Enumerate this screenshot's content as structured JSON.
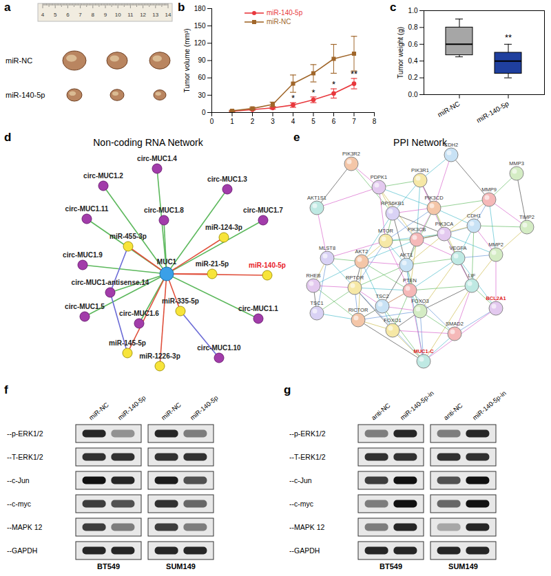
{
  "chart_data": [
    {
      "type": "line",
      "x": [
        1,
        2,
        3,
        4,
        5,
        6,
        7
      ],
      "xlim": [
        0,
        8
      ],
      "xticks": [
        0,
        1,
        2,
        3,
        4,
        5,
        6,
        7,
        8
      ],
      "ylim": [
        0,
        180
      ],
      "yticks": [
        0,
        30,
        60,
        90,
        120,
        150,
        180
      ],
      "ylabel": "Tumor volume (mm³)",
      "legend": "top",
      "series": [
        {
          "name": "miR-140-5p",
          "color": "#e8383d",
          "marker": "circle",
          "values": [
            2,
            5,
            8,
            13,
            22,
            33,
            50
          ],
          "errors": [
            1,
            1,
            2,
            4,
            5,
            8,
            9
          ]
        },
        {
          "name": "miR-NC",
          "color": "#a0662a",
          "marker": "square",
          "values": [
            3,
            7,
            14,
            50,
            68,
            93,
            102
          ],
          "errors": [
            1,
            2,
            4,
            15,
            15,
            25,
            30
          ]
        }
      ],
      "annotations": [
        {
          "x": 4,
          "label": "*"
        },
        {
          "x": 5,
          "label": "*"
        },
        {
          "x": 6,
          "label": "*"
        },
        {
          "x": 7,
          "label": "**"
        }
      ]
    },
    {
      "type": "box",
      "categories": [
        "miR-NC",
        "miR-140-5p"
      ],
      "colors": [
        "#a6a6a6",
        "#1f3f9e"
      ],
      "min": [
        0.45,
        0.2
      ],
      "q1": [
        0.47,
        0.25
      ],
      "median": [
        0.6,
        0.4
      ],
      "q3": [
        0.8,
        0.5
      ],
      "max": [
        0.9,
        0.6
      ],
      "ylim": [
        0,
        1
      ],
      "yticks": [
        {
          "value": 0,
          "label": "0.0"
        },
        {
          "value": 0.2,
          "label": "0.2"
        },
        {
          "value": 0.4,
          "label": "0.4"
        },
        {
          "value": 0.6,
          "label": "0.6"
        },
        {
          "value": 0.8,
          "label": "0.8"
        },
        {
          "value": 1,
          "label": "1.0"
        }
      ],
      "ylabel": "Tumor weight (g)",
      "annotations": [
        {
          "category": "miR-140-5p",
          "label": "**"
        }
      ]
    }
  ],
  "figure": {
    "panel_labels": [
      "a",
      "b",
      "c",
      "d",
      "e",
      "f",
      "g"
    ],
    "a": {
      "rows": [
        "miR-NC",
        "miR-140-5p"
      ],
      "ruler_ticks": [
        4,
        5,
        6,
        7,
        8,
        9,
        10,
        11,
        12,
        13,
        14
      ]
    },
    "d": {
      "title": "Non-coding RNA Network",
      "nodes": [
        {
          "label": "MUC1",
          "kind": "gene"
        },
        {
          "label": "circ-MUC1.4",
          "kind": "circRNA"
        },
        {
          "label": "circ-MUC1.2",
          "kind": "circRNA"
        },
        {
          "label": "circ-MUC1.3",
          "kind": "circRNA"
        },
        {
          "label": "circ-MUC1.11",
          "kind": "circRNA"
        },
        {
          "label": "circ-MUC1.8",
          "kind": "circRNA"
        },
        {
          "label": "circ-MUC1.7",
          "kind": "circRNA"
        },
        {
          "label": "circ-MUC1.9",
          "kind": "circRNA"
        },
        {
          "label": "circ-MUC1-antisense.14",
          "kind": "circRNA"
        },
        {
          "label": "circ-MUC1.5",
          "kind": "circRNA"
        },
        {
          "label": "circ-MUC1.6",
          "kind": "circRNA"
        },
        {
          "label": "circ-MUC1.1",
          "kind": "circRNA"
        },
        {
          "label": "circ-MUC1.10",
          "kind": "circRNA"
        },
        {
          "label": "miR-455-3p",
          "kind": "miRNA"
        },
        {
          "label": "miR-124-3p",
          "kind": "miRNA"
        },
        {
          "label": "miR-21-5p",
          "kind": "miRNA"
        },
        {
          "label": "miR-140-5p",
          "kind": "miRNA",
          "color": "#e8202a"
        },
        {
          "label": "miR-335-5p",
          "kind": "miRNA"
        },
        {
          "label": "miR-145-5p",
          "kind": "miRNA"
        },
        {
          "label": "miR-1226-3p",
          "kind": "miRNA"
        }
      ],
      "edges": [
        [
          0,
          1
        ],
        [
          0,
          2
        ],
        [
          0,
          3
        ],
        [
          0,
          4
        ],
        [
          0,
          5
        ],
        [
          0,
          6
        ],
        [
          0,
          7
        ],
        [
          0,
          8
        ],
        [
          0,
          9
        ],
        [
          0,
          10
        ],
        [
          0,
          11
        ],
        [
          0,
          13
        ],
        [
          0,
          14
        ],
        [
          0,
          15
        ],
        [
          0,
          16
        ],
        [
          0,
          17
        ],
        [
          0,
          18
        ],
        [
          0,
          19
        ],
        [
          8,
          13
        ],
        [
          8,
          18
        ],
        [
          12,
          17
        ]
      ]
    },
    "e": {
      "title": "PPI Network",
      "nodes": [
        {
          "label": "PIK3R2"
        },
        {
          "label": "CDH2"
        },
        {
          "label": "MMP3"
        },
        {
          "label": "PDPK1"
        },
        {
          "label": "PIK3R1"
        },
        {
          "label": "MMP9"
        },
        {
          "label": "AKT1S1"
        },
        {
          "label": "RPS6KB1"
        },
        {
          "label": "PIK3CD"
        },
        {
          "label": "CDH1"
        },
        {
          "label": "TIMP2"
        },
        {
          "label": "PIK3CA"
        },
        {
          "label": "MTOR"
        },
        {
          "label": "PIK3CB"
        },
        {
          "label": "VEGFA"
        },
        {
          "label": "MLST8"
        },
        {
          "label": "AKT2"
        },
        {
          "label": "AKT1"
        },
        {
          "label": "MMP2"
        },
        {
          "label": "RHEB"
        },
        {
          "label": "RPTOR"
        },
        {
          "label": "PTEN"
        },
        {
          "label": "LIF"
        },
        {
          "label": "TSC1"
        },
        {
          "label": "RICTOR"
        },
        {
          "label": "TSC2"
        },
        {
          "label": "FOXO3"
        },
        {
          "label": "BCL2A1",
          "color": "#e02020"
        },
        {
          "label": "FOXO1"
        },
        {
          "label": "SMAD2"
        },
        {
          "label": "MUC1-C",
          "color": "#e02020"
        }
      ]
    },
    "f": {
      "lanes": [
        "miR-NC",
        "miR-140-5p"
      ],
      "cell_lines": [
        "BT549",
        "SUM149"
      ],
      "rows": [
        "--p-ERK1/2",
        "--T-ERK1/2",
        "--c-Jun",
        "--c-myc",
        "--MAPK 12",
        "--GAPDH"
      ],
      "bands": [
        [
          [
            0.9,
            0.4
          ],
          [
            0.9,
            0.5
          ]
        ],
        [
          [
            0.85,
            0.85
          ],
          [
            0.85,
            0.85
          ]
        ],
        [
          [
            1,
            0.9
          ],
          [
            0.95,
            0.7
          ]
        ],
        [
          [
            0.8,
            0.7
          ],
          [
            0.85,
            0.6
          ]
        ],
        [
          [
            0.8,
            0.5
          ],
          [
            0.8,
            0.5
          ]
        ],
        [
          [
            0.9,
            0.9
          ],
          [
            0.9,
            0.9
          ]
        ]
      ]
    },
    "g": {
      "lanes": [
        "anti-NC",
        "miR-140-5p-in"
      ],
      "cell_lines": [
        "BT549",
        "SUM149"
      ],
      "rows": [
        "--p-ERK1/2",
        "--T-ERK1/2",
        "--c-Jun",
        "--c-myc",
        "--MAPK 12",
        "--GAPDH"
      ],
      "bands": [
        [
          [
            0.5,
            0.9
          ],
          [
            0.5,
            0.9
          ]
        ],
        [
          [
            0.85,
            0.85
          ],
          [
            0.85,
            0.85
          ]
        ],
        [
          [
            0.8,
            1
          ],
          [
            0.7,
            1
          ]
        ],
        [
          [
            0.5,
            1
          ],
          [
            0.6,
            1
          ]
        ],
        [
          [
            0.5,
            0.9
          ],
          [
            0.3,
            0.9
          ]
        ],
        [
          [
            0.9,
            0.9
          ],
          [
            0.9,
            0.9
          ]
        ]
      ]
    }
  }
}
